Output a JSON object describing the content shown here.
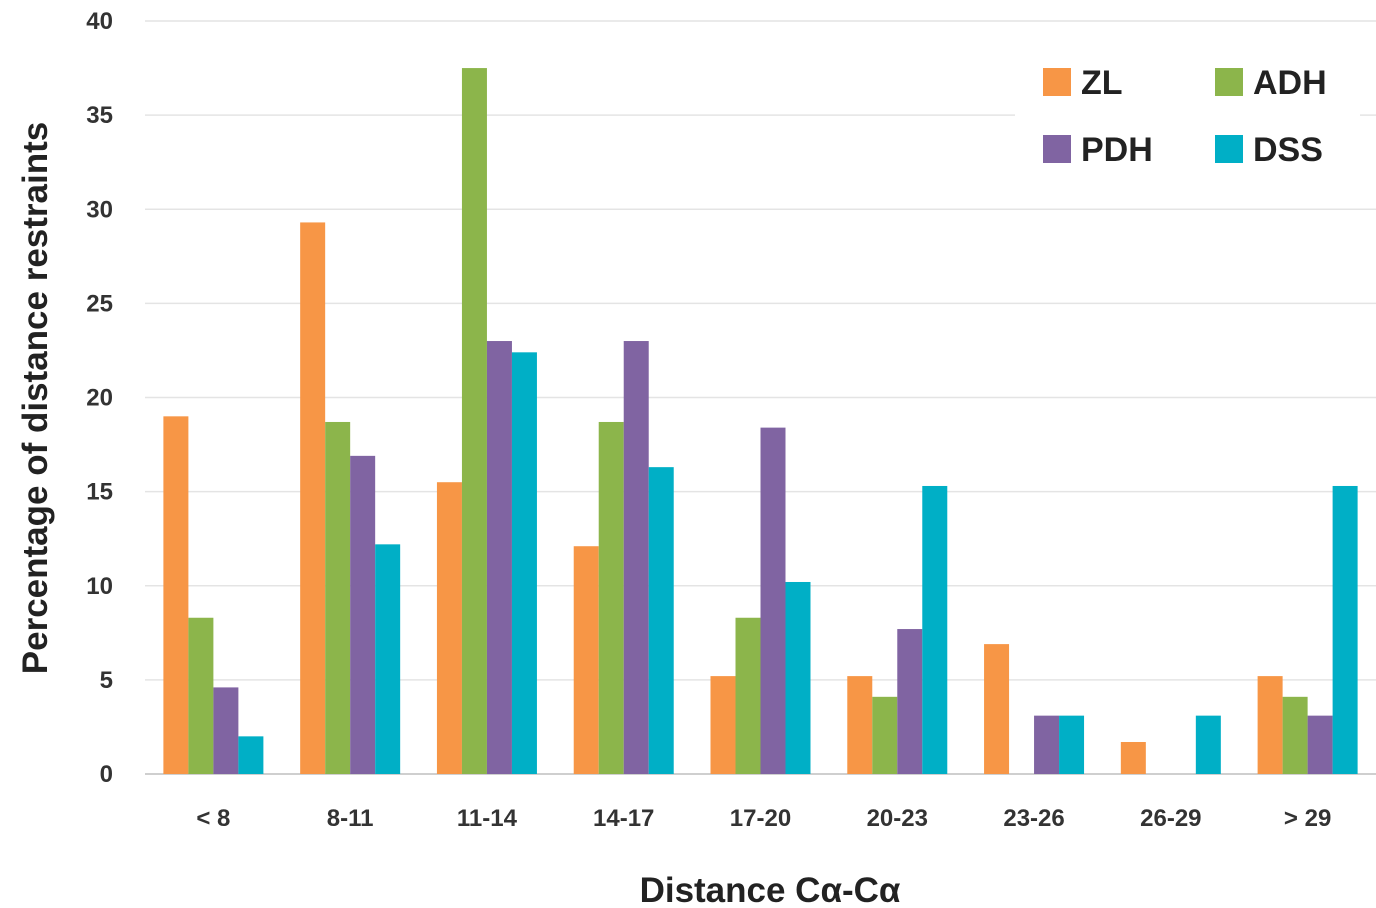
{
  "chart_data": {
    "type": "bar",
    "title": "",
    "xlabel": "Distance Cα-Cα",
    "ylabel": "Percentage of distance restraints",
    "ylim": [
      0,
      40
    ],
    "yticks": [
      "0",
      "5",
      "10",
      "15",
      "20",
      "25",
      "30",
      "35",
      "40"
    ],
    "grid": "horizontal",
    "legend_position": "top-right",
    "categories": [
      "< 8",
      "8-11",
      "11-14",
      "14-17",
      "17-20",
      "20-23",
      "23-26",
      "26-29",
      "> 29"
    ],
    "series": [
      {
        "name": "ZL",
        "color": "#f79646",
        "values": [
          19.0,
          29.3,
          15.5,
          12.1,
          5.2,
          5.2,
          6.9,
          1.7,
          5.2
        ]
      },
      {
        "name": "ADH",
        "color": "#8cb54b",
        "values": [
          8.3,
          18.7,
          37.5,
          18.7,
          8.3,
          4.1,
          0,
          0,
          4.1
        ]
      },
      {
        "name": "PDH",
        "color": "#8064a2",
        "values": [
          4.6,
          16.9,
          23.0,
          23.0,
          18.4,
          7.7,
          3.1,
          0,
          3.1
        ]
      },
      {
        "name": "DSS",
        "color": "#00afc6",
        "values": [
          2.0,
          12.2,
          22.4,
          16.3,
          10.2,
          15.3,
          3.1,
          3.1,
          15.3
        ]
      }
    ]
  }
}
